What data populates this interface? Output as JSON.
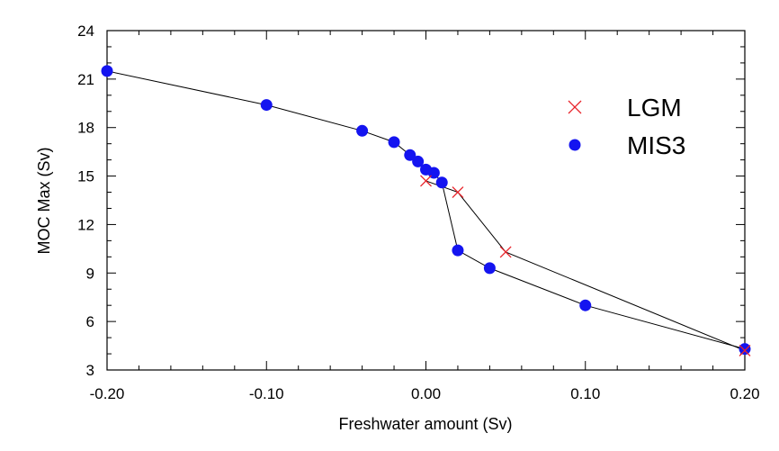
{
  "chart_data": {
    "type": "scatter",
    "title": "",
    "xlabel": "Freshwater amount (Sv)",
    "ylabel": "MOC Max (Sv)",
    "xlim": [
      -0.2,
      0.2
    ],
    "ylim": [
      3,
      24
    ],
    "x_ticks": [
      -0.2,
      -0.1,
      0.0,
      0.1,
      0.2
    ],
    "x_tick_labels": [
      "-0.20",
      "-0.10",
      "0.00",
      "0.10",
      "0.20"
    ],
    "y_ticks": [
      3,
      6,
      9,
      12,
      15,
      18,
      21,
      24
    ],
    "y_tick_labels": [
      "3",
      "6",
      "9",
      "12",
      "15",
      "18",
      "21",
      "24"
    ],
    "grid": false,
    "legend_position": "top-right",
    "series": [
      {
        "name": "LGM",
        "marker": "x",
        "color": "#e8242b",
        "connected": true,
        "points": [
          {
            "x": 0.0,
            "y": 14.7
          },
          {
            "x": 0.02,
            "y": 14.0
          },
          {
            "x": 0.05,
            "y": 10.3
          },
          {
            "x": 0.2,
            "y": 4.2
          }
        ]
      },
      {
        "name": "MIS3",
        "marker": "circle",
        "color": "#1414f0",
        "connected": true,
        "points": [
          {
            "x": -0.2,
            "y": 21.5
          },
          {
            "x": -0.1,
            "y": 19.4
          },
          {
            "x": -0.04,
            "y": 17.8
          },
          {
            "x": -0.02,
            "y": 17.1
          },
          {
            "x": -0.01,
            "y": 16.3
          },
          {
            "x": -0.005,
            "y": 15.9
          },
          {
            "x": 0.0,
            "y": 15.4
          },
          {
            "x": 0.005,
            "y": 15.2
          },
          {
            "x": 0.01,
            "y": 14.6
          },
          {
            "x": 0.02,
            "y": 10.4
          },
          {
            "x": 0.04,
            "y": 9.3
          },
          {
            "x": 0.1,
            "y": 7.0
          },
          {
            "x": 0.2,
            "y": 4.3
          }
        ]
      }
    ]
  }
}
